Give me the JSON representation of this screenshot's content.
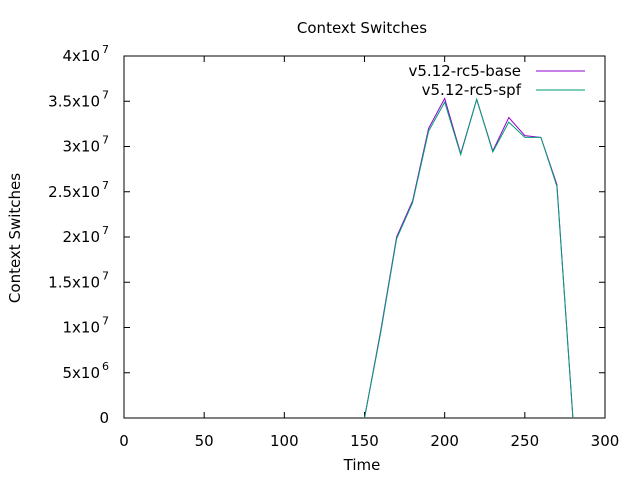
{
  "chart_data": {
    "type": "line",
    "title": "Context Switches",
    "xlabel": "Time",
    "ylabel": "Context Switches",
    "xlim": [
      0,
      300
    ],
    "ylim": [
      0,
      40000000
    ],
    "grid": false,
    "legend_position": "top-right",
    "x_ticks": [
      {
        "value": 0,
        "label": "0"
      },
      {
        "value": 50,
        "label": "50"
      },
      {
        "value": 100,
        "label": "100"
      },
      {
        "value": 150,
        "label": "150"
      },
      {
        "value": 200,
        "label": "200"
      },
      {
        "value": 250,
        "label": "250"
      },
      {
        "value": 300,
        "label": "300"
      }
    ],
    "y_ticks": [
      {
        "value": 0,
        "mantissa": "0",
        "exp": ""
      },
      {
        "value": 5000000,
        "mantissa": "5x10",
        "exp": "6"
      },
      {
        "value": 10000000,
        "mantissa": "1x10",
        "exp": "7"
      },
      {
        "value": 15000000,
        "mantissa": "1.5x10",
        "exp": "7"
      },
      {
        "value": 20000000,
        "mantissa": "2x10",
        "exp": "7"
      },
      {
        "value": 25000000,
        "mantissa": "2.5x10",
        "exp": "7"
      },
      {
        "value": 30000000,
        "mantissa": "3x10",
        "exp": "7"
      },
      {
        "value": 35000000,
        "mantissa": "3.5x10",
        "exp": "7"
      },
      {
        "value": 40000000,
        "mantissa": "4x10",
        "exp": "7"
      }
    ],
    "series": [
      {
        "name": "v5.12-rc5-base",
        "color": "#9400d3",
        "x": [
          150,
          160,
          170,
          180,
          190,
          200,
          210,
          220,
          230,
          240,
          250,
          260,
          270,
          280
        ],
        "y": [
          0,
          9500000,
          20000000,
          24000000,
          32000000,
          35300000,
          29200000,
          35200000,
          29500000,
          33200000,
          31200000,
          31000000,
          25800000,
          0
        ]
      },
      {
        "name": "v5.12-rc5-spf",
        "color": "#009e73",
        "x": [
          150,
          160,
          170,
          180,
          190,
          200,
          210,
          220,
          230,
          240,
          250,
          260,
          270,
          280
        ],
        "y": [
          0,
          9300000,
          19800000,
          23800000,
          31700000,
          34900000,
          29100000,
          35200000,
          29400000,
          32700000,
          31000000,
          31000000,
          25600000,
          0
        ]
      }
    ]
  }
}
